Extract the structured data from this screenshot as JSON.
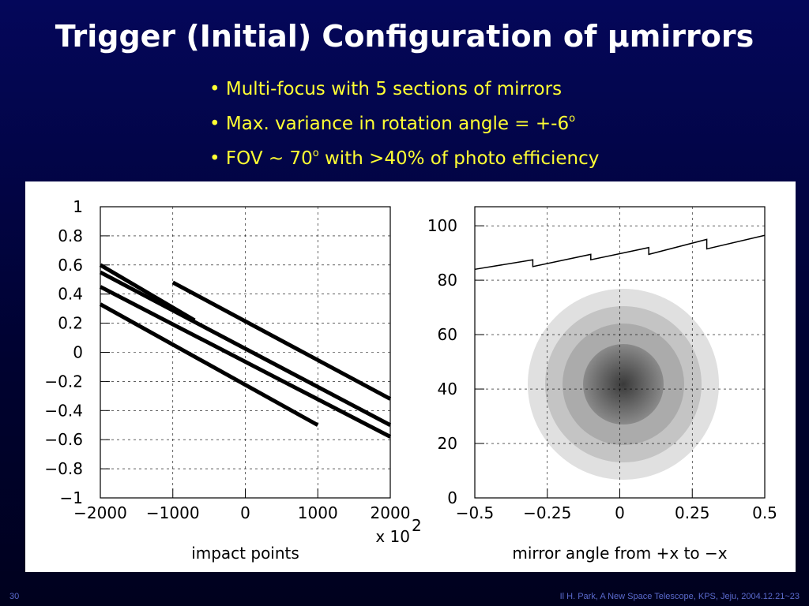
{
  "slide": {
    "title": "Trigger (Initial) Configuration of μmirrors",
    "bullets": [
      {
        "text": "Multi-focus with 5 sections of mirrors"
      },
      {
        "text": "Max. variance in rotation angle = +-6",
        "sup": "o"
      },
      {
        "text": "FOV ~ 70",
        "sup": "o",
        "after": " with >40% of photo efficiency"
      }
    ],
    "page": "30",
    "footer": "Il H. Park, A New Space Telescope, KPS, Jeju, 2004.12.21~23"
  },
  "chart_data": [
    {
      "type": "line",
      "x_label": "impact points",
      "x_multiplier": "x 10",
      "x_multiplier_exp": "2",
      "xlim": [
        -2000,
        2000
      ],
      "ylim": [
        -1,
        1
      ],
      "grid": true,
      "xticks": [
        {
          "value": -2000,
          "label": "−2000"
        },
        {
          "value": -1000,
          "label": "−1000"
        },
        0,
        1000,
        2000
      ],
      "yticks": [
        {
          "value": -1,
          "label": "−1"
        },
        {
          "value": -0.8,
          "label": "−0.8"
        },
        {
          "value": -0.6,
          "label": "−0.6"
        },
        {
          "value": -0.4,
          "label": "−0.4"
        },
        {
          "value": -0.2,
          "label": "−0.2"
        },
        0,
        0.2,
        0.4,
        0.6,
        0.8,
        1
      ],
      "series": [
        {
          "color": "#000000",
          "x": [
            -2000,
            2000
          ],
          "values": [
            0.55,
            -0.5
          ]
        },
        {
          "color": "#000000",
          "x": [
            -2000,
            2000
          ],
          "values": [
            0.45,
            -0.58
          ]
        },
        {
          "color": "#000000",
          "x": [
            -2000,
            1000
          ],
          "values": [
            0.33,
            -0.5
          ]
        },
        {
          "color": "#000000",
          "x": [
            -1000,
            2000
          ],
          "values": [
            0.48,
            -0.32
          ]
        },
        {
          "color": "#000000",
          "x": [
            -2000,
            -700
          ],
          "values": [
            0.6,
            0.22
          ]
        }
      ]
    },
    {
      "type": "line",
      "x_label": "mirror angle from +x to −x",
      "xlim": [
        -0.5,
        0.5
      ],
      "ylim": [
        0,
        107
      ],
      "grid": true,
      "xticks": [
        {
          "value": -0.5,
          "label": "−0.5"
        },
        {
          "value": -0.25,
          "label": "−0.25"
        },
        0,
        0.25,
        0.5
      ],
      "yticks": [
        0,
        20,
        40,
        60,
        80,
        100
      ],
      "series": [
        {
          "color": "#000000",
          "x": [
            -0.5,
            -0.3,
            -0.3,
            -0.1,
            -0.1,
            0.1,
            0.1,
            0.3,
            0.3,
            0.5
          ],
          "values": [
            84,
            87.5,
            85,
            89.5,
            87.5,
            92,
            89.5,
            95,
            91.5,
            96.5
          ]
        }
      ]
    }
  ]
}
